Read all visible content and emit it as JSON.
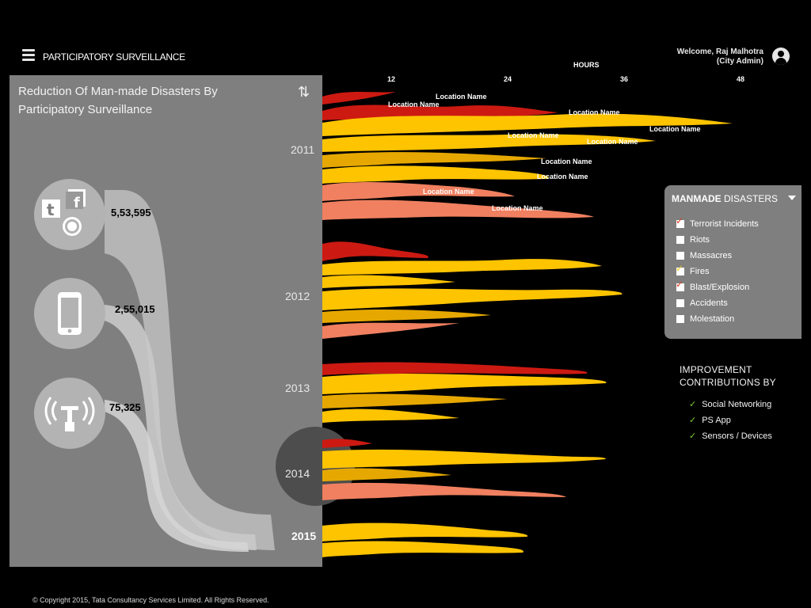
{
  "header": {
    "app_title": "PARTICIPATORY SURVEILLANCE",
    "welcome_line1": "Welcome, Raj Malhotra",
    "welcome_line2": "(City Admin)"
  },
  "axis": {
    "title": "HOURS",
    "ticks": [
      "12",
      "24",
      "36",
      "48"
    ]
  },
  "panel": {
    "title": "Reduction Of Man-made  Disasters By Participatory Surveillance",
    "sources": [
      {
        "icon": "social-media-icon",
        "count": "5,53,595"
      },
      {
        "icon": "smartphone-icon",
        "count": "2,55,015"
      },
      {
        "icon": "sensor-tower-icon",
        "count": "75,325"
      }
    ]
  },
  "years": [
    "2011",
    "2012",
    "2013",
    "2014",
    "2015"
  ],
  "location_labels": [
    "Location Name",
    "Location Name",
    "Location Name",
    "Location Name",
    "Location Name",
    "Location Name",
    "Location Name",
    "Location Name",
    "Location Name",
    "Location Name"
  ],
  "filter": {
    "title_bold": "MANMADE",
    "title_rest": " DISASTERS",
    "items": [
      {
        "label": "Terrorist  Incidents",
        "checked": true,
        "check_color": "#d93b1c"
      },
      {
        "label": "Riots",
        "checked": false
      },
      {
        "label": "Massacres",
        "checked": false
      },
      {
        "label": "Fires",
        "checked": true,
        "check_color": "#e6c619"
      },
      {
        "label": "Blast/Explosion",
        "checked": true,
        "check_color": "#d93b1c"
      },
      {
        "label": "Accidents",
        "checked": false
      },
      {
        "label": "Molestation",
        "checked": false
      }
    ]
  },
  "improvement": {
    "title": "IMPROVEMENT CONTRIBUTIONS  BY",
    "items": [
      "Social Networking",
      "PS App",
      "Sensors / Devices"
    ]
  },
  "colors": {
    "red": "#cc1a12",
    "yellow": "#ffc400",
    "amber": "#e6a800",
    "salmon": "#f08060",
    "panel": "#7f7f7f"
  },
  "footer": {
    "copyright": "© Copyright 2015, Tata Consultancy Services Limited. All Rights Reserved."
  }
}
